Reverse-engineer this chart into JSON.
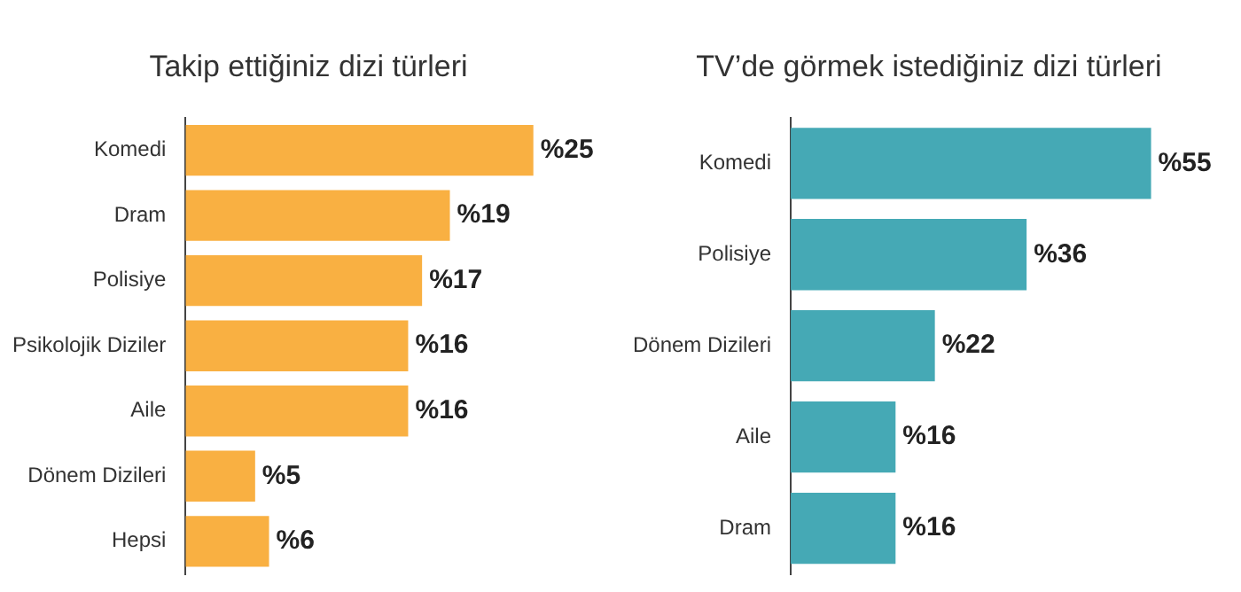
{
  "chart_data": [
    {
      "type": "bar",
      "orientation": "horizontal",
      "title": "Takip ettiğiniz dizi türleri",
      "categories": [
        "Komedi",
        "Dram",
        "Polisiye",
        "Psikolojik Diziler",
        "Aile",
        "Dönem Dizileri",
        "Hepsi"
      ],
      "values": [
        25,
        19,
        17,
        16,
        16,
        5,
        6
      ],
      "value_labels": [
        "%25",
        "%19",
        "%17",
        "%16",
        "%16",
        "%5",
        "%6"
      ],
      "color": "#f9b042",
      "tick_labels": "y"
    },
    {
      "type": "bar",
      "orientation": "horizontal",
      "title": "TV’de görmek istediğiniz dizi türleri",
      "categories": [
        "Komedi",
        "Polisiye",
        "Dönem Dizileri",
        "Aile",
        "Dram"
      ],
      "values": [
        55,
        36,
        22,
        16,
        16
      ],
      "value_labels": [
        "%55",
        "%36",
        "%22",
        "%16",
        "%16"
      ],
      "color": "#45a9b5",
      "tick_labels": "y"
    }
  ]
}
